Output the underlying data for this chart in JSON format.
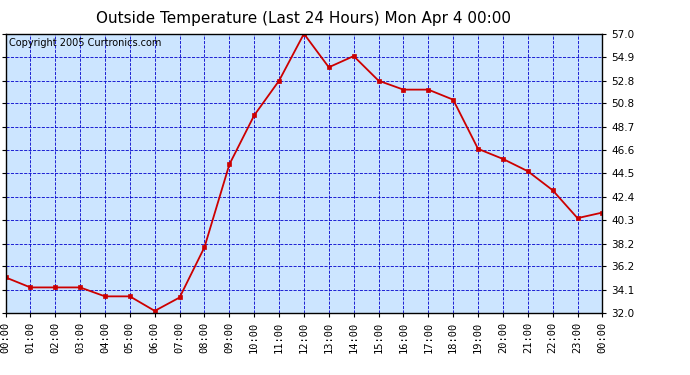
{
  "title": "Outside Temperature (Last 24 Hours) Mon Apr 4 00:00",
  "copyright": "Copyright 2005 Curtronics.com",
  "x_labels": [
    "00:00",
    "01:00",
    "02:00",
    "03:00",
    "04:00",
    "05:00",
    "06:00",
    "07:00",
    "08:00",
    "09:00",
    "10:00",
    "11:00",
    "12:00",
    "13:00",
    "14:00",
    "15:00",
    "16:00",
    "17:00",
    "18:00",
    "19:00",
    "20:00",
    "21:00",
    "22:00",
    "23:00",
    "00:00"
  ],
  "y_values": [
    35.2,
    34.3,
    34.3,
    34.3,
    33.5,
    33.5,
    32.2,
    33.4,
    37.9,
    45.3,
    49.7,
    52.8,
    57.0,
    54.0,
    55.0,
    52.8,
    52.0,
    52.0,
    51.1,
    46.7,
    45.8,
    44.7,
    43.0,
    40.5,
    41.0
  ],
  "yticks": [
    32.0,
    34.1,
    36.2,
    38.2,
    40.3,
    42.4,
    44.5,
    46.6,
    48.7,
    50.8,
    52.8,
    54.9,
    57.0
  ],
  "ylim": [
    32.0,
    57.0
  ],
  "line_color": "#cc0000",
  "marker_color": "#cc0000",
  "bg_color": "#cce5ff",
  "grid_color": "#0000cc",
  "border_color": "#000000",
  "title_color": "#000000",
  "tick_label_color": "#000000",
  "title_fontsize": 11,
  "tick_fontsize": 7.5,
  "copyright_fontsize": 7
}
